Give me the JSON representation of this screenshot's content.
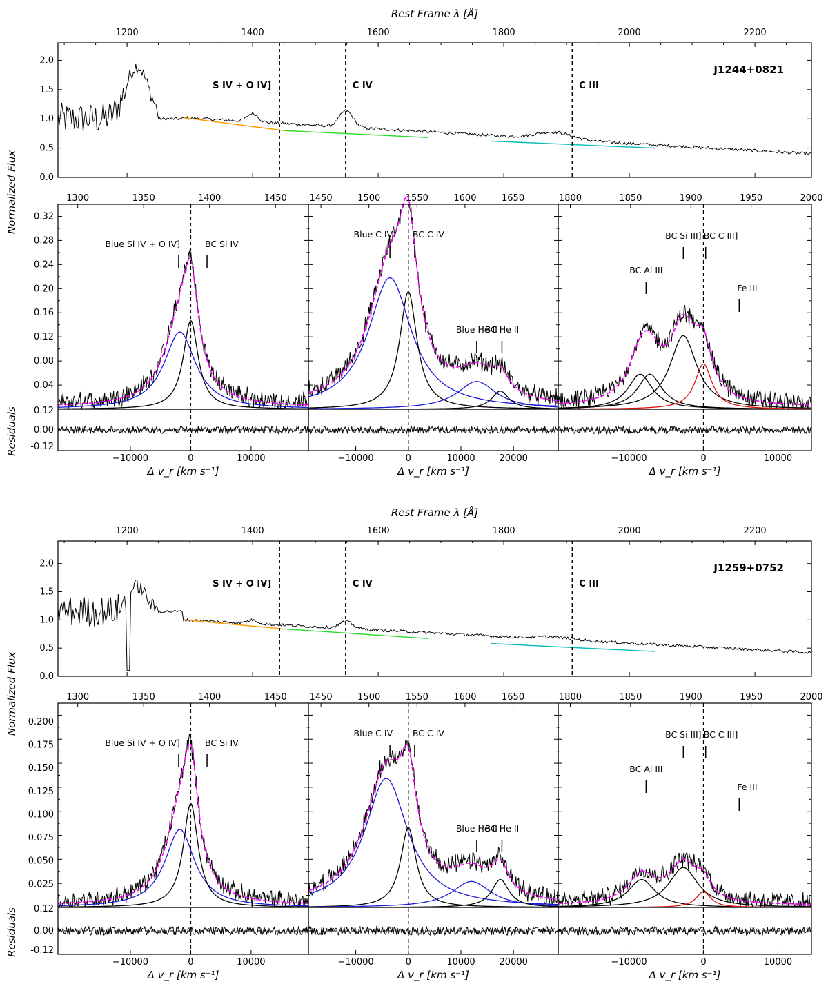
{
  "chart_data": [
    {
      "type": "line",
      "quasar": "J1244+0821",
      "top_xlabel": "Rest Frame λ [Å]",
      "ylabel": "Normalized Flux",
      "residual_label": "Residuals",
      "overview": {
        "xlim": [
          1090,
          2290
        ],
        "ylim": [
          0.0,
          2.3
        ],
        "x_ticks": [
          "1200",
          "1400",
          "1600",
          "1800",
          "2000",
          "2200"
        ],
        "y_ticks": [
          "0.0",
          "0.5",
          "1.0",
          "1.5",
          "2.0"
        ],
        "dividers": [
          1443,
          1548,
          1909
        ],
        "region_labels": [
          "S IV + O IV]",
          "C IV",
          "C III"
        ],
        "continuum": [
          {
            "color": "#ff9900",
            "x": [
              1290,
              1450
            ],
            "y": [
              1.02,
              0.8
            ]
          },
          {
            "color": "#22dd22",
            "x": [
              1450,
              1680
            ],
            "y": [
              0.8,
              0.68
            ]
          },
          {
            "color": "#00bbbb",
            "x": [
              1780,
              2040
            ],
            "y": [
              0.62,
              0.5
            ]
          }
        ]
      },
      "panels": [
        {
          "region": "Si IV",
          "wl_ticks": [
            "1300",
            "1350",
            "1400",
            "1450"
          ],
          "wl_range": [
            1285,
            1475
          ],
          "vel_range": [
            -22000,
            19500
          ],
          "vel_ticks": [
            "-10000",
            "0",
            "10000"
          ],
          "ylim": [
            0.0,
            0.34
          ],
          "y_ticks": [
            "0.04",
            "0.08",
            "0.12",
            "0.16",
            "0.20",
            "0.24",
            "0.28",
            "0.32"
          ],
          "annotations": [
            {
              "text": "Blue Si IV + O IV]",
              "v": -2000
            },
            {
              "text": "BC Si IV",
              "v": 2700
            }
          ],
          "components": [
            {
              "name": "Blue Si IV + O IV]",
              "color": "#1a1adb",
              "v0": -1800,
              "amp": 0.128,
              "width": 3200
            },
            {
              "name": "BC",
              "color": "#000000",
              "v0": 0,
              "amp": 0.147,
              "width": 1500
            }
          ]
        },
        {
          "region": "C IV",
          "wl_ticks": [
            "1450",
            "1500",
            "1550",
            "1600",
            "1650"
          ],
          "wl_range": [
            1437,
            1697
          ],
          "vel_range": [
            -19000,
            28500
          ],
          "vel_ticks": [
            "-10000",
            "0",
            "10000",
            "20000"
          ],
          "ylim": [
            0.0,
            0.34
          ],
          "annotations": [
            {
              "text": "Blue C IV",
              "v": -3500
            },
            {
              "text": "BC C IV",
              "v": 1200
            },
            {
              "text": "Blue He II",
              "v": 13000
            },
            {
              "text": "BC He II",
              "v": 17800
            }
          ],
          "components": [
            {
              "name": "Blue C IV",
              "color": "#1a1adb",
              "v0": -3500,
              "amp": 0.218,
              "width": 5000
            },
            {
              "name": "BC C IV",
              "color": "#000000",
              "v0": 0,
              "amp": 0.195,
              "width": 2000
            },
            {
              "name": "Blue He II",
              "color": "#1a1adb",
              "v0": 13000,
              "amp": 0.046,
              "width": 4500
            },
            {
              "name": "BC He II",
              "color": "#000000",
              "v0": 17500,
              "amp": 0.03,
              "width": 2000
            }
          ]
        },
        {
          "region": "C III]",
          "wl_ticks": [
            "1800",
            "1850",
            "1900",
            "1950",
            "2000"
          ],
          "wl_range": [
            1790,
            2000
          ],
          "vel_range": [
            -19500,
            14500
          ],
          "vel_ticks": [
            "-10000",
            "0",
            "10000"
          ],
          "ylim": [
            0.0,
            0.34
          ],
          "annotations": [
            {
              "text": "BC Al III",
              "v": -7700
            },
            {
              "text": "BC Si III]",
              "v": -2700
            },
            {
              "text": "BC C III]",
              "v": 300
            },
            {
              "text": "Fe III",
              "v": 4800
            }
          ],
          "components": [
            {
              "name": "BC Al III a",
              "color": "#000000",
              "v0": -8500,
              "amp": 0.058,
              "width": 2000
            },
            {
              "name": "BC Al III b",
              "color": "#000000",
              "v0": -7200,
              "amp": 0.058,
              "width": 2000
            },
            {
              "name": "BC Si III]",
              "color": "#000000",
              "v0": -2700,
              "amp": 0.122,
              "width": 2200
            },
            {
              "name": "BC C III]",
              "color": "#e01010",
              "v0": 0,
              "amp": 0.075,
              "width": 1400
            }
          ]
        }
      ]
    },
    {
      "type": "line",
      "quasar": "J1259+0752",
      "top_xlabel": "Rest Frame λ [Å]",
      "ylabel": "Normalized Flux",
      "residual_label": "Residuals",
      "overview": {
        "xlim": [
          1090,
          2290
        ],
        "ylim": [
          0.0,
          2.4
        ],
        "x_ticks": [
          "1200",
          "1400",
          "1600",
          "1800",
          "2000",
          "2200"
        ],
        "y_ticks": [
          "0.0",
          "0.5",
          "1.0",
          "1.5",
          "2.0"
        ],
        "dividers": [
          1443,
          1548,
          1909
        ],
        "region_labels": [
          "S IV + O IV]",
          "C IV",
          "C III"
        ],
        "continuum": [
          {
            "color": "#ff9900",
            "x": [
              1290,
              1450
            ],
            "y": [
              1.0,
              0.84
            ]
          },
          {
            "color": "#22dd22",
            "x": [
              1450,
              1680
            ],
            "y": [
              0.84,
              0.67
            ]
          },
          {
            "color": "#00bbbb",
            "x": [
              1780,
              2040
            ],
            "y": [
              0.58,
              0.44
            ]
          }
        ]
      },
      "panels": [
        {
          "region": "Si IV",
          "wl_ticks": [
            "1300",
            "1350",
            "1400",
            "1450"
          ],
          "wl_range": [
            1285,
            1475
          ],
          "vel_range": [
            -22000,
            19500
          ],
          "vel_ticks": [
            "-10000",
            "0",
            "10000"
          ],
          "ylim": [
            0.0,
            0.22
          ],
          "y_ticks": [
            "0.025",
            "0.050",
            "0.075",
            "0.100",
            "0.125",
            "0.150",
            "0.175",
            "0.200"
          ],
          "annotations": [
            {
              "text": "Blue Si IV + O IV]",
              "v": -2000
            },
            {
              "text": "BC Si IV",
              "v": 2700
            }
          ],
          "components": [
            {
              "name": "Blue Si IV + O IV]",
              "color": "#1a1adb",
              "v0": -1800,
              "amp": 0.084,
              "width": 3000
            },
            {
              "name": "BC",
              "color": "#000000",
              "v0": 0,
              "amp": 0.112,
              "width": 1500
            }
          ]
        },
        {
          "region": "C IV",
          "wl_ticks": [
            "1450",
            "1500",
            "1550",
            "1600",
            "1650"
          ],
          "wl_range": [
            1437,
            1697
          ],
          "vel_range": [
            -19000,
            28500
          ],
          "vel_ticks": [
            "-10000",
            "0",
            "10000",
            "20000"
          ],
          "ylim": [
            0.0,
            0.22
          ],
          "annotations": [
            {
              "text": "Blue C IV",
              "v": -3500
            },
            {
              "text": "BC C IV",
              "v": 1200
            },
            {
              "text": "Blue He II",
              "v": 13000
            },
            {
              "text": "BC He II",
              "v": 17800
            }
          ],
          "components": [
            {
              "name": "Blue C IV",
              "color": "#1a1adb",
              "v0": -4200,
              "amp": 0.139,
              "width": 5000
            },
            {
              "name": "BC C IV",
              "color": "#000000",
              "v0": 0,
              "amp": 0.086,
              "width": 1800
            },
            {
              "name": "Blue He II",
              "color": "#1a1adb",
              "v0": 12000,
              "amp": 0.028,
              "width": 4500
            },
            {
              "name": "BC He II",
              "color": "#000000",
              "v0": 17500,
              "amp": 0.03,
              "width": 2000
            }
          ]
        },
        {
          "region": "C III]",
          "wl_ticks": [
            "1800",
            "1850",
            "1900",
            "1950",
            "2000"
          ],
          "wl_range": [
            1790,
            2000
          ],
          "vel_range": [
            -19500,
            14500
          ],
          "vel_ticks": [
            "-10000",
            "0",
            "10000"
          ],
          "ylim": [
            0.0,
            0.22
          ],
          "annotations": [
            {
              "text": "BC Al III",
              "v": -7700
            },
            {
              "text": "BC Si III]",
              "v": -2700
            },
            {
              "text": "BC C III]",
              "v": 300
            },
            {
              "text": "Fe III",
              "v": 4800
            }
          ],
          "components": [
            {
              "name": "BC Al III",
              "color": "#000000",
              "v0": -8300,
              "amp": 0.03,
              "width": 2200
            },
            {
              "name": "BC Si III]",
              "color": "#000000",
              "v0": -2700,
              "amp": 0.043,
              "width": 2400
            },
            {
              "name": "BC C III]",
              "color": "#e01010",
              "v0": 0,
              "amp": 0.017,
              "width": 1200
            }
          ]
        }
      ]
    }
  ],
  "residual_ticks": [
    "0.12",
    "0.00",
    "-0.12"
  ],
  "velocity_xlabel": "Δ v_r [km s⁻¹]"
}
